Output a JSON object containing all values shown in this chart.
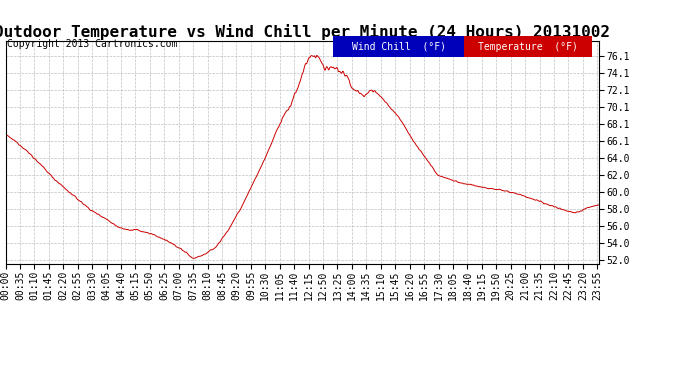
{
  "title": "Outdoor Temperature vs Wind Chill per Minute (24 Hours) 20131002",
  "copyright": "Copyright 2013 Cartronics.com",
  "ylim": [
    51.5,
    77.8
  ],
  "yticks": [
    52.0,
    54.0,
    56.0,
    58.0,
    60.0,
    62.0,
    64.0,
    66.1,
    68.1,
    70.1,
    72.1,
    74.1,
    76.1
  ],
  "background_color": "#ffffff",
  "plot_bg_color": "#ffffff",
  "grid_color": "#c0c0c0",
  "line_color": "#cc0000",
  "legend_wind_chill_bg": "#0000bb",
  "legend_temp_bg": "#cc0000",
  "legend_wind_chill_text": "Wind Chill  (°F)",
  "legend_temp_text": "Temperature  (°F)",
  "title_fontsize": 11.5,
  "copyright_fontsize": 7,
  "tick_fontsize": 7,
  "legend_fontsize": 7,
  "n_points": 1440,
  "knots_t": [
    0,
    0.5,
    1.0,
    1.5,
    2.0,
    2.5,
    3.0,
    3.5,
    4.0,
    4.5,
    5.0,
    5.25,
    5.5,
    6.0,
    6.5,
    7.0,
    7.25,
    7.583,
    8.0,
    8.5,
    9.0,
    9.5,
    10.0,
    10.5,
    11.0,
    11.1,
    11.3,
    11.5,
    11.7,
    12.0,
    12.2,
    12.3,
    12.5,
    12.7,
    12.9,
    13.1,
    13.3,
    13.5,
    13.8,
    14.0,
    14.3,
    14.5,
    14.7,
    15.0,
    15.5,
    16.0,
    16.5,
    17.0,
    17.5,
    18.0,
    18.5,
    19.0,
    19.5,
    20.0,
    20.5,
    21.0,
    21.5,
    22.0,
    22.3,
    22.5,
    22.7,
    23.0,
    23.3,
    23.55,
    24.0
  ],
  "knots_v": [
    66.8,
    65.8,
    64.5,
    63.0,
    61.5,
    60.2,
    59.0,
    57.8,
    57.0,
    56.0,
    55.5,
    55.6,
    55.4,
    55.0,
    54.3,
    53.5,
    53.0,
    52.2,
    52.6,
    53.5,
    55.5,
    58.0,
    61.0,
    64.0,
    67.5,
    68.2,
    69.2,
    70.1,
    71.5,
    73.8,
    75.5,
    76.1,
    76.0,
    75.8,
    74.3,
    74.8,
    74.5,
    74.3,
    73.8,
    72.2,
    71.8,
    71.2,
    72.0,
    71.8,
    70.2,
    68.5,
    66.0,
    64.0,
    62.0,
    61.5,
    61.0,
    60.8,
    60.5,
    60.3,
    60.0,
    59.5,
    59.0,
    58.5,
    58.2,
    58.0,
    57.8,
    57.6,
    57.8,
    58.2,
    58.5
  ]
}
